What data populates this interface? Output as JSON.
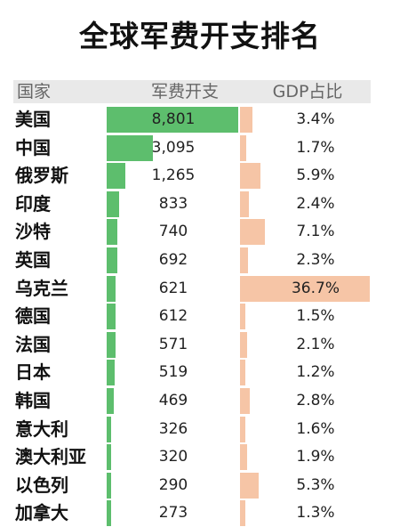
{
  "chart_data": {
    "type": "table",
    "title": "全球军费开支排名",
    "columns": [
      "国家",
      "军费开支",
      "GDP占比"
    ],
    "rows": [
      {
        "country": "美国",
        "spending": 8801,
        "spending_label": "8,801",
        "gdp_pct": 3.4,
        "gdp_label": "3.4%"
      },
      {
        "country": "中国",
        "spending": 3095,
        "spending_label": "3,095",
        "gdp_pct": 1.7,
        "gdp_label": "1.7%"
      },
      {
        "country": "俄罗斯",
        "spending": 1265,
        "spending_label": "1,265",
        "gdp_pct": 5.9,
        "gdp_label": "5.9%"
      },
      {
        "country": "印度",
        "spending": 833,
        "spending_label": "833",
        "gdp_pct": 2.4,
        "gdp_label": "2.4%"
      },
      {
        "country": "沙特",
        "spending": 740,
        "spending_label": "740",
        "gdp_pct": 7.1,
        "gdp_label": "7.1%"
      },
      {
        "country": "英国",
        "spending": 692,
        "spending_label": "692",
        "gdp_pct": 2.3,
        "gdp_label": "2.3%"
      },
      {
        "country": "乌克兰",
        "spending": 621,
        "spending_label": "621",
        "gdp_pct": 36.7,
        "gdp_label": "36.7%"
      },
      {
        "country": "德国",
        "spending": 612,
        "spending_label": "612",
        "gdp_pct": 1.5,
        "gdp_label": "1.5%"
      },
      {
        "country": "法国",
        "spending": 571,
        "spending_label": "571",
        "gdp_pct": 2.1,
        "gdp_label": "2.1%"
      },
      {
        "country": "日本",
        "spending": 519,
        "spending_label": "519",
        "gdp_pct": 1.2,
        "gdp_label": "1.2%"
      },
      {
        "country": "韩国",
        "spending": 469,
        "spending_label": "469",
        "gdp_pct": 2.8,
        "gdp_label": "2.8%"
      },
      {
        "country": "意大利",
        "spending": 326,
        "spending_label": "326",
        "gdp_pct": 1.6,
        "gdp_label": "1.6%"
      },
      {
        "country": "澳大利亚",
        "spending": 320,
        "spending_label": "320",
        "gdp_pct": 1.9,
        "gdp_label": "1.9%"
      },
      {
        "country": "以色列",
        "spending": 290,
        "spending_label": "290",
        "gdp_pct": 5.3,
        "gdp_label": "5.3%"
      },
      {
        "country": "加拿大",
        "spending": 273,
        "spending_label": "273",
        "gdp_pct": 1.3,
        "gdp_label": "1.3%"
      }
    ],
    "colors": {
      "spending_bar": "#5dbe6d",
      "gdp_bar": "#f6c5a6",
      "header_bg": "#e9e9e9"
    }
  }
}
